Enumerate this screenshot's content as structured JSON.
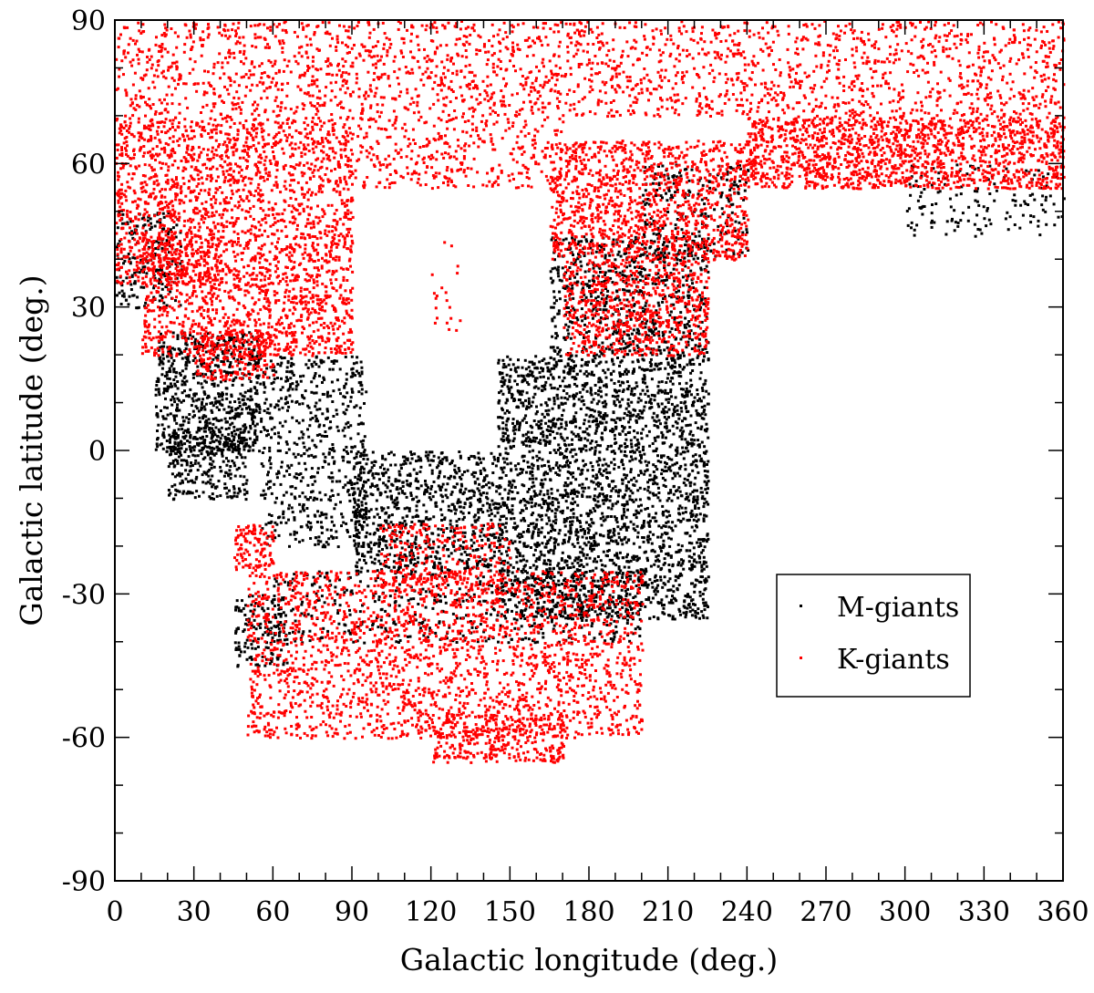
{
  "chart_data": {
    "type": "scatter",
    "title": "",
    "xlabel": "Galactic longitude (deg.)",
    "ylabel": "Galactic latitude (deg.)",
    "xlim": [
      0,
      360
    ],
    "ylim": [
      -90,
      90
    ],
    "x_ticks": [
      "0",
      "30",
      "60",
      "90",
      "120",
      "150",
      "180",
      "210",
      "240",
      "270",
      "300",
      "330",
      "360"
    ],
    "y_ticks": [
      "-90",
      "-60",
      "-30",
      "0",
      "30",
      "60",
      "90"
    ],
    "grid": false,
    "legend_position": "right",
    "legend": [
      "M-giants",
      "K-giants"
    ],
    "series": [
      {
        "name": "M-giants",
        "color": "#000000",
        "regions": [
          {
            "l": [
              0,
              25
            ],
            "b": [
              30,
              50
            ],
            "n": 200
          },
          {
            "l": [
              15,
              55
            ],
            "b": [
              0,
              25
            ],
            "n": 700
          },
          {
            "l": [
              20,
              50
            ],
            "b": [
              -10,
              5
            ],
            "n": 300
          },
          {
            "l": [
              55,
              95
            ],
            "b": [
              -20,
              20
            ],
            "n": 600
          },
          {
            "l": [
              90,
              145
            ],
            "b": [
              -25,
              0
            ],
            "n": 800
          },
          {
            "l": [
              145,
              225
            ],
            "b": [
              -35,
              20
            ],
            "n": 2800
          },
          {
            "l": [
              165,
              225
            ],
            "b": [
              20,
              45
            ],
            "n": 700
          },
          {
            "l": [
              60,
              200
            ],
            "b": [
              -40,
              -25
            ],
            "n": 500
          },
          {
            "l": [
              45,
              65
            ],
            "b": [
              -45,
              -30
            ],
            "n": 150
          },
          {
            "l": [
              200,
              240
            ],
            "b": [
              40,
              60
            ],
            "n": 250
          },
          {
            "l": [
              300,
              360
            ],
            "b": [
              45,
              60
            ],
            "n": 150
          }
        ]
      },
      {
        "name": "K-giants",
        "color": "#ff0000",
        "regions": [
          {
            "l": [
              0,
              360
            ],
            "b": [
              70,
              90
            ],
            "n": 2200
          },
          {
            "l": [
              0,
              90
            ],
            "b": [
              45,
              70
            ],
            "n": 1300
          },
          {
            "l": [
              0,
              40
            ],
            "b": [
              35,
              45
            ],
            "n": 250
          },
          {
            "l": [
              10,
              90
            ],
            "b": [
              20,
              45
            ],
            "n": 1200
          },
          {
            "l": [
              30,
              60
            ],
            "b": [
              15,
              25
            ],
            "n": 200
          },
          {
            "l": [
              90,
              170
            ],
            "b": [
              55,
              70
            ],
            "n": 350
          },
          {
            "l": [
              165,
              240
            ],
            "b": [
              40,
              65
            ],
            "n": 1200
          },
          {
            "l": [
              170,
              225
            ],
            "b": [
              20,
              40
            ],
            "n": 700
          },
          {
            "l": [
              240,
              360
            ],
            "b": [
              55,
              70
            ],
            "n": 1500
          },
          {
            "l": [
              50,
              200
            ],
            "b": [
              -60,
              -25
            ],
            "n": 2200
          },
          {
            "l": [
              120,
              170
            ],
            "b": [
              -65,
              -55
            ],
            "n": 300
          },
          {
            "l": [
              45,
              60
            ],
            "b": [
              -25,
              -15
            ],
            "n": 120
          },
          {
            "l": [
              100,
              150
            ],
            "b": [
              -30,
              -15
            ],
            "n": 300
          },
          {
            "l": [
              120,
              135
            ],
            "b": [
              25,
              45
            ],
            "n": 20
          }
        ]
      }
    ]
  }
}
